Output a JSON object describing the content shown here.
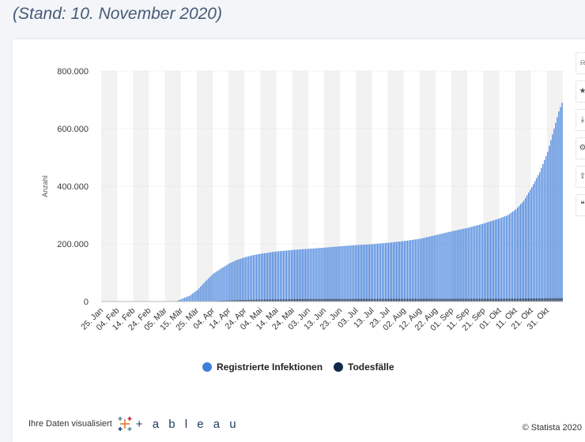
{
  "header": {
    "subtitle": "(Stand: 10. November 2020)"
  },
  "colors": {
    "infections": "#3f7fdc",
    "deaths": "#13294b",
    "band": "#f2f2f2"
  },
  "side_toolbar": [
    "bell-icon",
    "star-icon",
    "download-icon",
    "gear-icon",
    "share-icon",
    "quote-icon"
  ],
  "legend": [
    {
      "label": "Registrierte Infektionen",
      "color": "#3f7fdc"
    },
    {
      "label": "Todesfälle",
      "color": "#13294b"
    }
  ],
  "footer": {
    "tableau_prefix": "Ihre Daten visualisiert",
    "tableau_word": "+ a b l e a u",
    "copyright": "© Statista 2020"
  },
  "chart_data": {
    "type": "bar",
    "ylabel": "Anzahl",
    "ylim": [
      0,
      800000
    ],
    "y_ticks": [
      0,
      200000,
      400000,
      600000,
      800000
    ],
    "y_tick_labels": [
      "0",
      "200.000",
      "400.000",
      "600.000",
      "800.000"
    ],
    "x_start": "2020-01-25",
    "x_end": "2020-11-09",
    "x_tick_labels": [
      "25. Jan",
      "04. Feb",
      "14. Feb",
      "24. Feb",
      "05. Mär",
      "15. Mär",
      "25. Mär",
      "04. Apr",
      "14. Apr",
      "24. Apr",
      "04. Mai",
      "14. Mai",
      "24. Mai",
      "03. Jun",
      "13. Jun",
      "23. Jun",
      "03. Jul",
      "13. Jul",
      "23. Jul",
      "02. Aug",
      "12. Aug",
      "22. Aug",
      "01. Sep",
      "11. Sep",
      "21. Sep",
      "01. Okt",
      "11. Okt",
      "21. Okt",
      "31. Okt"
    ],
    "infections_key_points": [
      [
        "2020-01-25",
        0
      ],
      [
        "2020-03-01",
        100
      ],
      [
        "2020-03-12",
        2000
      ],
      [
        "2020-03-20",
        20000
      ],
      [
        "2020-03-25",
        40000
      ],
      [
        "2020-03-30",
        70000
      ],
      [
        "2020-04-04",
        97000
      ],
      [
        "2020-04-09",
        115000
      ],
      [
        "2020-04-14",
        132000
      ],
      [
        "2020-04-19",
        145000
      ],
      [
        "2020-04-24",
        154000
      ],
      [
        "2020-04-29",
        161000
      ],
      [
        "2020-05-04",
        166000
      ],
      [
        "2020-05-14",
        174000
      ],
      [
        "2020-05-24",
        179000
      ],
      [
        "2020-06-03",
        183000
      ],
      [
        "2020-06-13",
        187000
      ],
      [
        "2020-06-23",
        192000
      ],
      [
        "2020-07-03",
        196000
      ],
      [
        "2020-07-13",
        199000
      ],
      [
        "2020-07-23",
        204000
      ],
      [
        "2020-08-02",
        210000
      ],
      [
        "2020-08-12",
        218000
      ],
      [
        "2020-08-22",
        231000
      ],
      [
        "2020-09-01",
        244000
      ],
      [
        "2020-09-11",
        256000
      ],
      [
        "2020-09-21",
        271000
      ],
      [
        "2020-10-01",
        289000
      ],
      [
        "2020-10-06",
        300000
      ],
      [
        "2020-10-11",
        320000
      ],
      [
        "2020-10-16",
        350000
      ],
      [
        "2020-10-21",
        397000
      ],
      [
        "2020-10-26",
        449000
      ],
      [
        "2020-10-31",
        520000
      ],
      [
        "2020-11-04",
        600000
      ],
      [
        "2020-11-07",
        660000
      ],
      [
        "2020-11-09",
        690000
      ]
    ],
    "deaths_key_points": [
      [
        "2020-01-25",
        0
      ],
      [
        "2020-03-15",
        10
      ],
      [
        "2020-04-01",
        1000
      ],
      [
        "2020-04-15",
        4000
      ],
      [
        "2020-05-01",
        6500
      ],
      [
        "2020-06-01",
        8600
      ],
      [
        "2020-08-01",
        9200
      ],
      [
        "2020-10-01",
        9500
      ],
      [
        "2020-11-09",
        11500
      ]
    ]
  }
}
